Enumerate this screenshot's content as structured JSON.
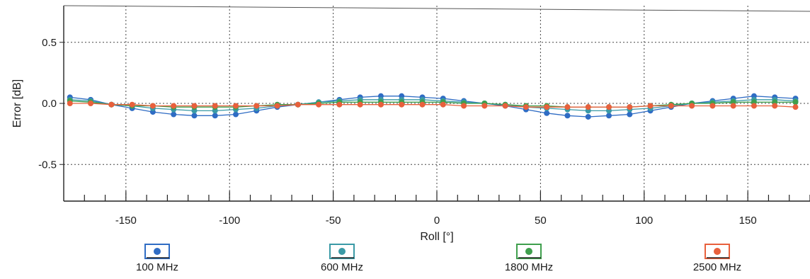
{
  "chart_data": {
    "type": "line",
    "xlabel": "Roll [°]",
    "ylabel": "Error [dB]",
    "xlim": [
      -180,
      180
    ],
    "ylim": [
      -0.8,
      0.8
    ],
    "x_ticks": [
      -150,
      -100,
      -50,
      0,
      50,
      100,
      150
    ],
    "x_tick_labels": [
      "-150",
      "-100",
      "-50",
      "0",
      "50",
      "100",
      "150"
    ],
    "y_ticks": [
      0.5,
      0.0,
      -0.5
    ],
    "y_tick_labels": [
      "0.5",
      "0.0",
      "-0.5"
    ],
    "grid": true,
    "legend_position": "bottom",
    "x": [
      -177,
      -167,
      -157,
      -147,
      -137,
      -127,
      -117,
      -107,
      -97,
      -87,
      -77,
      -67,
      -57,
      -47,
      -37,
      -27,
      -17,
      -7,
      3,
      13,
      23,
      33,
      43,
      53,
      63,
      73,
      83,
      93,
      103,
      113,
      123,
      133,
      143,
      153,
      163,
      173
    ],
    "series": [
      {
        "name": "100 MHz",
        "color": "#2f6cc4",
        "values": [
          0.05,
          0.03,
          -0.01,
          -0.04,
          -0.07,
          -0.09,
          -0.1,
          -0.1,
          -0.09,
          -0.06,
          -0.03,
          -0.01,
          0.01,
          0.03,
          0.05,
          0.06,
          0.06,
          0.05,
          0.04,
          0.02,
          0.0,
          -0.02,
          -0.05,
          -0.08,
          -0.1,
          -0.11,
          -0.1,
          -0.09,
          -0.06,
          -0.03,
          0.0,
          0.02,
          0.04,
          0.06,
          0.05,
          0.04
        ]
      },
      {
        "name": "600 MHz",
        "color": "#3a9aa6",
        "values": [
          0.03,
          0.02,
          -0.01,
          -0.02,
          -0.04,
          -0.05,
          -0.06,
          -0.06,
          -0.05,
          -0.04,
          -0.02,
          -0.01,
          0.01,
          0.02,
          0.03,
          0.03,
          0.03,
          0.03,
          0.02,
          0.01,
          0.0,
          -0.01,
          -0.03,
          -0.04,
          -0.05,
          -0.06,
          -0.06,
          -0.05,
          -0.04,
          -0.02,
          0.0,
          0.01,
          0.02,
          0.03,
          0.03,
          0.02
        ]
      },
      {
        "name": "1800 MHz",
        "color": "#3f9f4d",
        "values": [
          0.02,
          0.01,
          -0.01,
          -0.02,
          -0.02,
          -0.03,
          -0.03,
          -0.03,
          -0.03,
          -0.02,
          -0.01,
          -0.01,
          0.0,
          0.01,
          0.01,
          0.01,
          0.01,
          0.01,
          0.01,
          0.0,
          0.0,
          -0.01,
          -0.02,
          -0.02,
          -0.03,
          -0.03,
          -0.03,
          -0.03,
          -0.02,
          -0.01,
          0.0,
          0.0,
          0.01,
          0.01,
          0.01,
          0.01
        ]
      },
      {
        "name": "2500 MHz",
        "color": "#e8603c",
        "values": [
          0.0,
          0.0,
          -0.01,
          -0.01,
          -0.02,
          -0.02,
          -0.02,
          -0.02,
          -0.02,
          -0.02,
          -0.02,
          -0.01,
          -0.01,
          -0.01,
          -0.01,
          -0.01,
          -0.01,
          -0.01,
          -0.01,
          -0.02,
          -0.02,
          -0.02,
          -0.03,
          -0.03,
          -0.03,
          -0.03,
          -0.03,
          -0.03,
          -0.02,
          -0.02,
          -0.02,
          -0.02,
          -0.02,
          -0.02,
          -0.02,
          -0.03
        ]
      }
    ]
  }
}
